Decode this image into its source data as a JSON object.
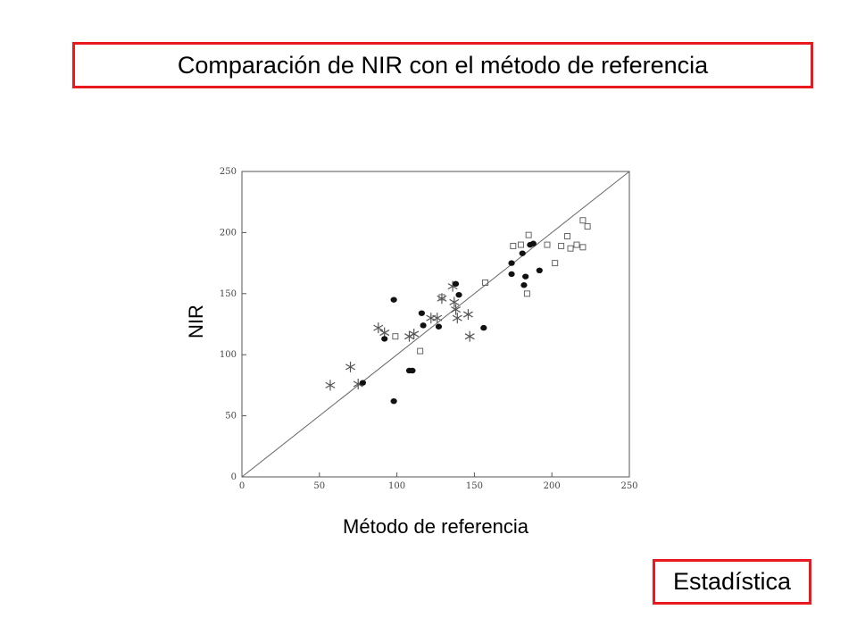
{
  "title": "Comparación de NIR con el método de referencia",
  "footer": "Estadística",
  "chart_data": {
    "type": "scatter",
    "title": "",
    "xlabel": "Método de referencia",
    "ylabel": "NIR",
    "xlim": [
      0,
      250
    ],
    "ylim": [
      0,
      250
    ],
    "xticks": [
      "0",
      "50",
      "100",
      "150",
      "200",
      "250"
    ],
    "yticks": [
      "0",
      "50",
      "100",
      "150",
      "200",
      "250"
    ],
    "identity_line": true,
    "series": [
      {
        "marker": "star",
        "points": [
          [
            57,
            75
          ],
          [
            70,
            90
          ],
          [
            75,
            76
          ],
          [
            88,
            122
          ],
          [
            92,
            118
          ],
          [
            108,
            115
          ],
          [
            111,
            117
          ],
          [
            122,
            130
          ],
          [
            126,
            130
          ],
          [
            129,
            146
          ],
          [
            136,
            156
          ],
          [
            137,
            143
          ],
          [
            138,
            137
          ],
          [
            139,
            130
          ],
          [
            146,
            133
          ],
          [
            147,
            115
          ]
        ]
      },
      {
        "marker": "filled-circle",
        "points": [
          [
            78,
            77
          ],
          [
            92,
            113
          ],
          [
            98,
            145
          ],
          [
            98,
            62
          ],
          [
            108,
            87
          ],
          [
            110,
            87
          ],
          [
            116,
            134
          ],
          [
            117,
            124
          ],
          [
            127,
            123
          ],
          [
            138,
            158
          ],
          [
            140,
            149
          ],
          [
            156,
            122
          ],
          [
            174,
            175
          ],
          [
            174,
            166
          ],
          [
            181,
            183
          ],
          [
            182,
            157
          ],
          [
            183,
            164
          ],
          [
            186,
            190
          ],
          [
            188,
            191
          ],
          [
            192,
            169
          ]
        ]
      },
      {
        "marker": "open-square",
        "points": [
          [
            99,
            115
          ],
          [
            115,
            103
          ],
          [
            129,
            147
          ],
          [
            157,
            159
          ],
          [
            175,
            189
          ],
          [
            180,
            190
          ],
          [
            184,
            150
          ],
          [
            185,
            198
          ],
          [
            197,
            190
          ],
          [
            202,
            175
          ],
          [
            206,
            189
          ],
          [
            210,
            197
          ],
          [
            212,
            187
          ],
          [
            216,
            190
          ],
          [
            220,
            188
          ],
          [
            220,
            210
          ],
          [
            223,
            205
          ]
        ]
      }
    ]
  }
}
